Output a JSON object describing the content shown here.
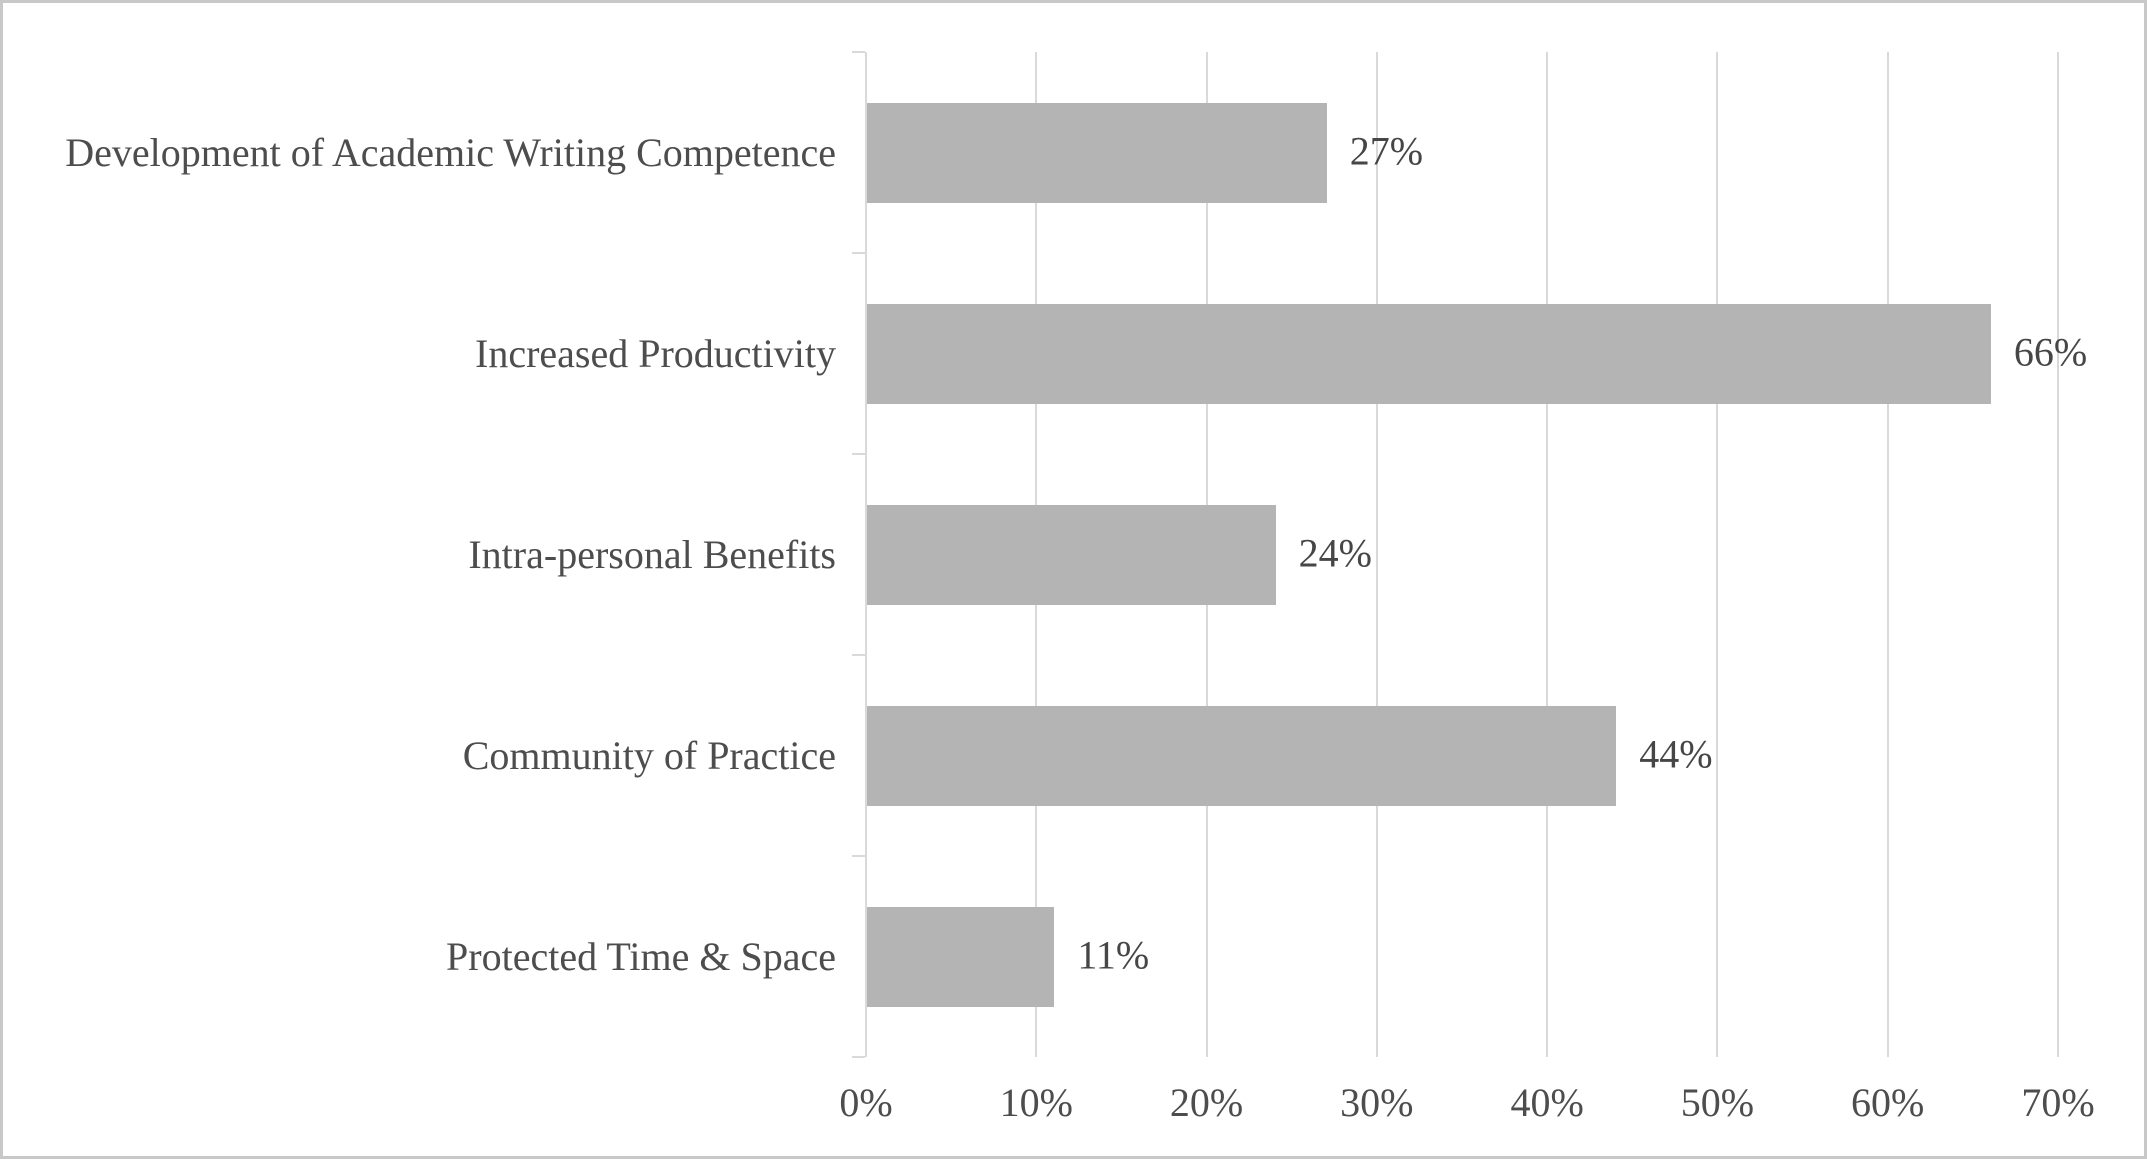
{
  "figure": {
    "background_color": "#ffffff",
    "border_color": "#c8c8c8"
  },
  "chart_data": {
    "type": "bar",
    "orientation": "horizontal",
    "title": "",
    "xlabel": "",
    "ylabel": "",
    "legend": false,
    "grid": true,
    "categories": [
      "Development of Academic Writing Competence",
      "Increased Productivity",
      "Intra-personal Benefits",
      "Community of Practice",
      "Protected Time & Space"
    ],
    "values": [
      27,
      66,
      24,
      44,
      11
    ],
    "data_labels": [
      "27%",
      "66%",
      "24%",
      "44%",
      "11%"
    ],
    "x_axis": {
      "min": 0,
      "max": 70,
      "tick_step": 10,
      "tick_labels": [
        "0%",
        "10%",
        "20%",
        "30%",
        "40%",
        "50%",
        "60%",
        "70%"
      ]
    },
    "colors": {
      "bar": "#b4b4b4",
      "gridline": "#d9d9d9",
      "axis": "#d9d9d9",
      "text": "#4d4d4d"
    }
  }
}
